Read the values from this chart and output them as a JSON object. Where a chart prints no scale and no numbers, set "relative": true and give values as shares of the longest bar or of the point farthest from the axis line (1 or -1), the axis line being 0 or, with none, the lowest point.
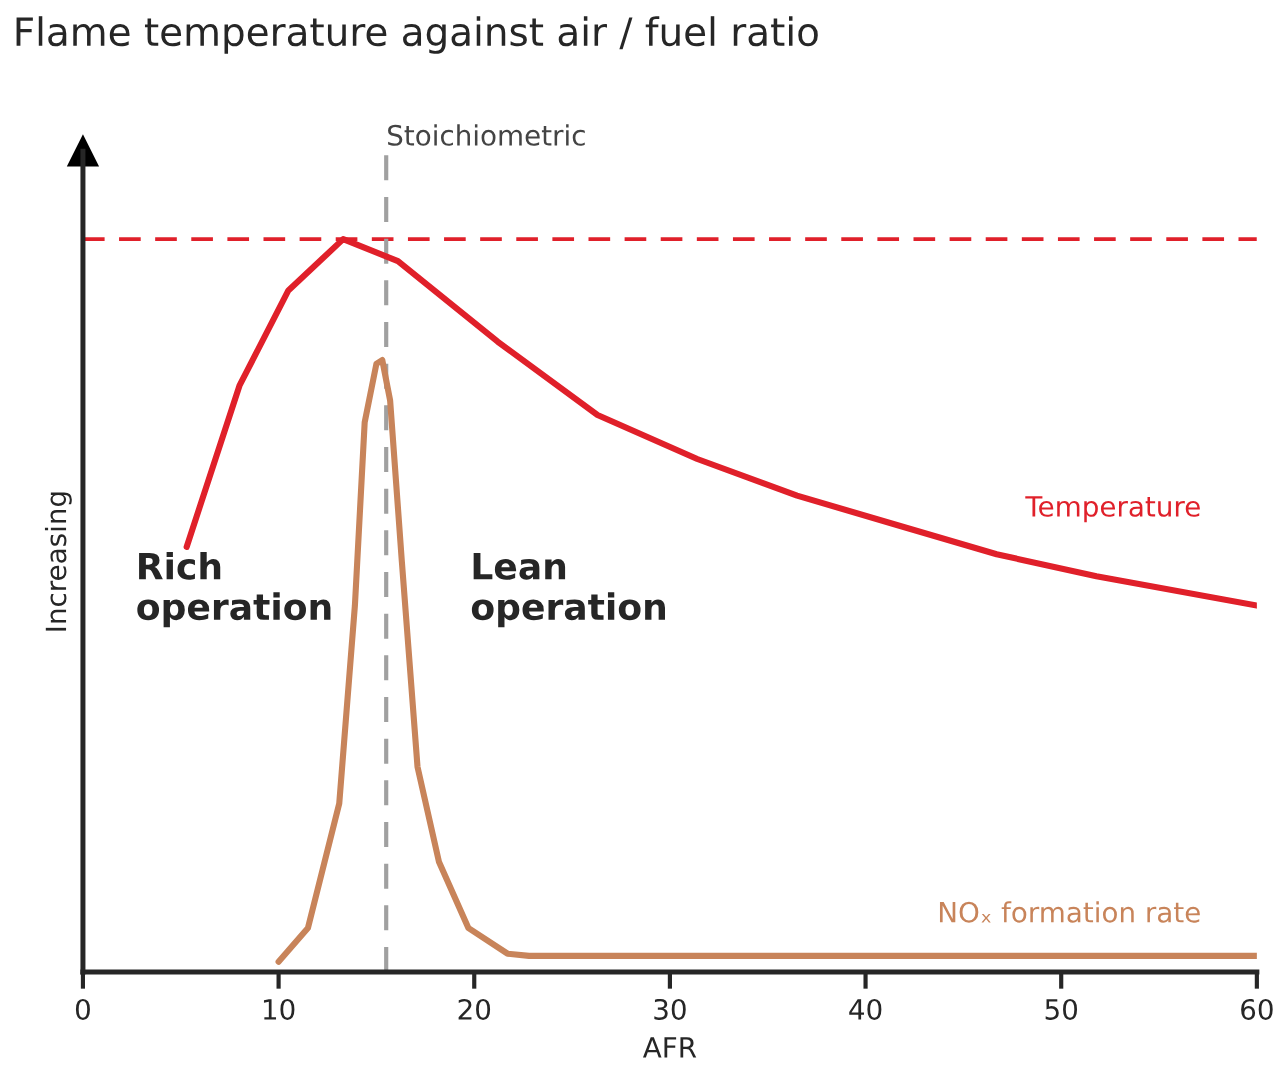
{
  "chart_data": {
    "type": "line",
    "title": "Flame temperature against air / fuel ratio",
    "xlabel": "AFR",
    "ylabel": "Increasing",
    "relative": true,
    "xlim": [
      0,
      60
    ],
    "xticks": [
      0,
      10,
      20,
      30,
      40,
      50,
      60
    ],
    "grid": false,
    "legend": false,
    "marker": "none",
    "line_style": "solid",
    "series": [
      {
        "name": "Temperature",
        "color": "#e0202a",
        "x": [
          5.3,
          8,
          10.5,
          13.3,
          16.1,
          21.2,
          26.3,
          31.4,
          36.5,
          41.6,
          46.7,
          51.8,
          60
        ],
        "values": [
          0.58,
          0.8,
          0.93,
          1,
          0.97,
          0.86,
          0.76,
          0.7,
          0.65,
          0.61,
          0.57,
          0.54,
          0.5
        ]
      },
      {
        "name": "NOₓ formation rate",
        "color": "#c8845a",
        "x": [
          10,
          11.5,
          13.1,
          13.9,
          14.4,
          15.0,
          15.3,
          15.7,
          16.3,
          17.1,
          18.2,
          19.7,
          21.7,
          22.8,
          60
        ],
        "values": [
          0.014,
          0.06,
          0.23,
          0.5,
          0.75,
          0.83,
          0.835,
          0.78,
          0.56,
          0.28,
          0.15,
          0.06,
          0.025,
          0.022,
          0.022
        ]
      }
    ],
    "ref_lines": [
      {
        "axis": "y",
        "value": 1,
        "label": null,
        "color": "#e0202a",
        "line_style": "dashed"
      },
      {
        "axis": "x",
        "value": 15.5,
        "label": "Stoichiometric",
        "color": "#a0a0a0",
        "line_style": "dashed"
      }
    ],
    "annotations": [
      "Rich\noperation",
      "Lean\noperation"
    ]
  }
}
